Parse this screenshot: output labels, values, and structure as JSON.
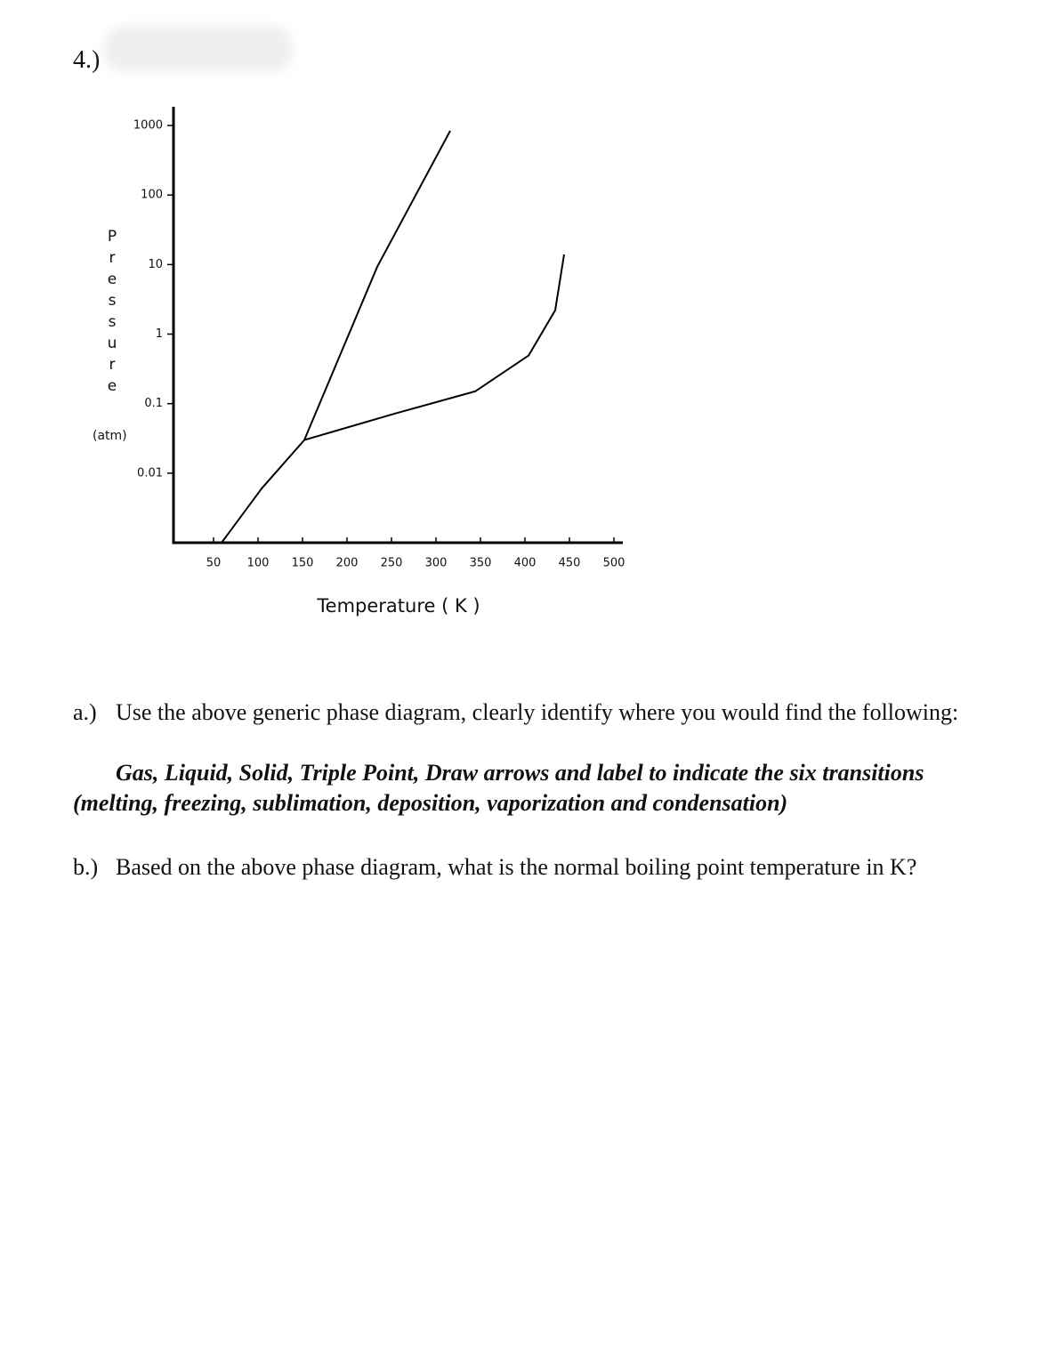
{
  "header": {
    "number": "4.)"
  },
  "chart_data": {
    "type": "line",
    "y_label": "Pressure",
    "y_unit": "(atm)",
    "x_label": "Temperature ( K )",
    "xlim": [
      5,
      510
    ],
    "xticks": [
      50,
      100,
      150,
      200,
      250,
      300,
      350,
      400,
      450,
      500
    ],
    "ylim": [
      0.001,
      1860
    ],
    "ylog": true,
    "yticks": [
      0.01,
      0.1,
      1,
      10,
      100,
      1000
    ],
    "color": "#000000",
    "series": [
      {
        "x": [
          59,
          104,
          152
        ],
        "values": [
          0.001,
          0.006,
          0.03
        ]
      },
      {
        "x": [
          152,
          234,
          316
        ],
        "values": [
          0.03,
          9.3,
          840
        ]
      },
      {
        "x": [
          152,
          254,
          344,
          404,
          434,
          444
        ],
        "values": [
          0.03,
          0.072,
          0.15,
          0.49,
          2.2,
          14
        ]
      }
    ]
  },
  "questions": {
    "a": {
      "label": "a.)",
      "text": "Use the above generic phase diagram, clearly identify where you would find the following:",
      "emphasis": "Gas, Liquid, Solid, Triple Point, Draw arrows and label to indicate the six transitions (melting, freezing, sublimation, deposition, vaporization and condensation)"
    },
    "b": {
      "label": "b.)",
      "text": "Based on the above phase diagram, what is the normal boiling point temperature in K?"
    }
  }
}
